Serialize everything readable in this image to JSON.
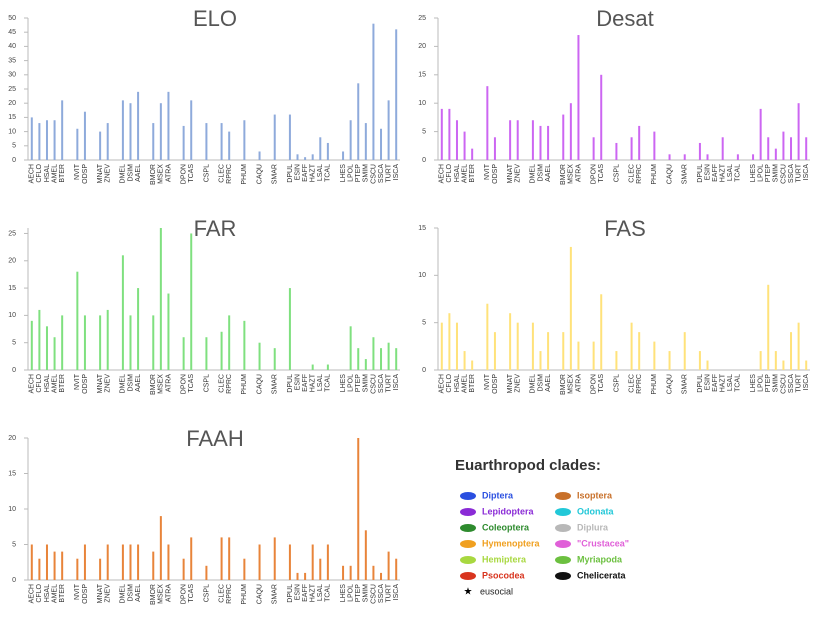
{
  "chart_data": [
    {
      "type": "bar",
      "title": "ELO",
      "color": "#8eaadb",
      "ylim": [
        0,
        50
      ],
      "yticks": [
        0,
        5,
        10,
        15,
        20,
        25,
        30,
        35,
        40,
        45,
        50
      ],
      "categories": [
        "AECH",
        "CFLO",
        "HSAL",
        "AMEL",
        "BTER",
        null,
        "NVIT",
        "ODSP",
        null,
        "MNAT",
        "ZNEV",
        null,
        "DMEL",
        "DSIM",
        "AAEL",
        null,
        "BMOR",
        "MSEX",
        "ATRA",
        null,
        "DPON",
        "TCAS",
        null,
        "CSPL",
        null,
        "CLEC",
        "RPRC",
        null,
        "PHUM",
        null,
        "CAQU",
        null,
        "SMAR",
        null,
        "DPUL",
        "ESIN",
        "EAFF",
        "HAZT",
        "LSAL",
        "TCAL",
        null,
        "LHES",
        "LPOL",
        "PTEP",
        "SMIM",
        "CSCU",
        "SSCA",
        "TURT",
        "ISCA"
      ],
      "values": [
        15,
        13,
        14,
        14,
        21,
        null,
        11,
        17,
        null,
        10,
        13,
        null,
        21,
        20,
        24,
        null,
        13,
        20,
        24,
        null,
        12,
        21,
        null,
        13,
        null,
        13,
        10,
        null,
        14,
        null,
        3,
        null,
        16,
        null,
        16,
        2,
        1,
        2,
        8,
        6,
        null,
        3,
        14,
        27,
        13,
        48,
        11,
        21,
        46
      ]
    },
    {
      "type": "bar",
      "title": "Desat",
      "color": "#cc66f2",
      "ylim": [
        0,
        25
      ],
      "yticks": [
        0,
        5,
        10,
        15,
        20,
        25
      ],
      "categories": [
        "AECH",
        "CFLO",
        "HSAL",
        "AMEL",
        "BTER",
        null,
        "NVIT",
        "ODSP",
        null,
        "MNAT",
        "ZNEV",
        null,
        "DMEL",
        "DSIM",
        "AAEL",
        null,
        "BMOR",
        "MSEX",
        "ATRA",
        null,
        "DPON",
        "TCAS",
        null,
        "CSPL",
        null,
        "CLEC",
        "RPRC",
        null,
        "PHUM",
        null,
        "CAQU",
        null,
        "SMAR",
        null,
        "DPUL",
        "ESIN",
        "EAFF",
        "HAZT",
        "LSAL",
        "TCAL",
        null,
        "LHES",
        "LPOL",
        "PTEP",
        "SMIM",
        "CSCU",
        "SSCA",
        "TURT",
        "ISCA"
      ],
      "values": [
        9,
        9,
        7,
        5,
        2,
        null,
        13,
        4,
        null,
        7,
        7,
        null,
        7,
        6,
        6,
        null,
        8,
        10,
        22,
        null,
        4,
        15,
        null,
        3,
        null,
        4,
        6,
        null,
        5,
        null,
        1,
        null,
        1,
        null,
        3,
        1,
        0,
        4,
        0,
        1,
        null,
        1,
        9,
        4,
        2,
        5,
        4,
        10,
        4
      ]
    },
    {
      "type": "bar",
      "title": "FAR",
      "color": "#7fe07f",
      "ylim": [
        0,
        26
      ],
      "yticks": [
        0,
        5,
        10,
        15,
        20,
        25
      ],
      "categories": [
        "AECH",
        "CFLO",
        "HSAL",
        "AMEL",
        "BTER",
        null,
        "NVIT",
        "ODSP",
        null,
        "MNAT",
        "ZNEV",
        null,
        "DMEL",
        "DSIM",
        "AAEL",
        null,
        "BMOR",
        "MSEX",
        "ATRA",
        null,
        "DPON",
        "TCAS",
        null,
        "CSPL",
        null,
        "CLEC",
        "RPRC",
        null,
        "PHUM",
        null,
        "CAQU",
        null,
        "SMAR",
        null,
        "DPUL",
        "ESIN",
        "EAFF",
        "HAZT",
        "LSAL",
        "TCAL",
        null,
        "LHES",
        "LPOL",
        "PTEP",
        "SMIM",
        "CSCU",
        "SSCA",
        "TURT",
        "ISCA"
      ],
      "values": [
        9,
        11,
        8,
        6,
        10,
        null,
        18,
        10,
        null,
        10,
        11,
        null,
        21,
        10,
        15,
        null,
        10,
        26,
        14,
        null,
        6,
        25,
        null,
        6,
        null,
        7,
        10,
        null,
        9,
        null,
        5,
        null,
        4,
        null,
        15,
        0,
        0,
        1,
        0,
        1,
        null,
        0,
        8,
        4,
        2,
        6,
        4,
        5,
        4
      ]
    },
    {
      "type": "bar",
      "title": "FAS",
      "color": "#ffe27a",
      "ylim": [
        0,
        15
      ],
      "yticks": [
        0,
        5,
        10,
        15
      ],
      "categories": [
        "AECH",
        "CFLO",
        "HSAL",
        "AMEL",
        "BTER",
        null,
        "NVIT",
        "ODSP",
        null,
        "MNAT",
        "ZNEV",
        null,
        "DMEL",
        "DSIM",
        "AAEL",
        null,
        "BMOR",
        "MSEX",
        "ATRA",
        null,
        "DPON",
        "TCAS",
        null,
        "CSPL",
        null,
        "CLEC",
        "RPRC",
        null,
        "PHUM",
        null,
        "CAQU",
        null,
        "SMAR",
        null,
        "DPUL",
        "ESIN",
        "EAFF",
        "HAZT",
        "LSAL",
        "TCAL",
        null,
        "LHES",
        "LPOL",
        "PTEP",
        "SMIM",
        "CSCU",
        "SSCA",
        "TURT",
        "ISCA"
      ],
      "values": [
        5,
        6,
        5,
        2,
        1,
        null,
        7,
        4,
        null,
        6,
        5,
        null,
        5,
        2,
        4,
        null,
        4,
        13,
        3,
        null,
        3,
        8,
        null,
        2,
        null,
        5,
        4,
        null,
        3,
        null,
        2,
        null,
        4,
        null,
        2,
        1,
        0,
        0,
        0,
        0,
        null,
        0,
        2,
        9,
        2,
        1,
        4,
        5,
        1
      ]
    },
    {
      "type": "bar",
      "title": "FAAH",
      "color": "#e8843a",
      "ylim": [
        0,
        20
      ],
      "yticks": [
        0,
        5,
        10,
        15,
        20
      ],
      "categories": [
        "AECH",
        "CFLO",
        "HSAL",
        "AMEL",
        "BTER",
        null,
        "NVIT",
        "ODSP",
        null,
        "MNAT",
        "ZNEV",
        null,
        "DMEL",
        "DSIM",
        "AAEL",
        null,
        "BMOR",
        "MSEX",
        "ATRA",
        null,
        "DPON",
        "TCAS",
        null,
        "CSPL",
        null,
        "CLEC",
        "RPRC",
        null,
        "PHUM",
        null,
        "CAQU",
        null,
        "SMAR",
        null,
        "DPUL",
        "ESIN",
        "EAFF",
        "HAZT",
        "LSAL",
        "TCAL",
        null,
        "LHES",
        "LPOL",
        "PTEP",
        "SMIM",
        "CSCU",
        "SSCA",
        "TURT",
        "ISCA"
      ],
      "values": [
        5,
        3,
        5,
        4,
        4,
        null,
        3,
        5,
        null,
        3,
        5,
        null,
        5,
        5,
        5,
        null,
        4,
        9,
        5,
        null,
        3,
        6,
        null,
        2,
        null,
        6,
        6,
        null,
        3,
        null,
        5,
        null,
        6,
        null,
        5,
        1,
        1,
        5,
        3,
        5,
        null,
        2,
        2,
        20,
        7,
        2,
        1,
        4,
        3
      ]
    }
  ],
  "legend": {
    "title": "Euarthropod clades:",
    "eusocial": "eusocial",
    "items": [
      {
        "name": "Diptera",
        "color": "#2a4fe0"
      },
      {
        "name": "Lepidoptera",
        "color": "#8a2bd6"
      },
      {
        "name": "Coleoptera",
        "color": "#2e8b2e"
      },
      {
        "name": "Hymenoptera",
        "color": "#f0a020"
      },
      {
        "name": "Hemiptera",
        "color": "#a8d840"
      },
      {
        "name": "Psocodea",
        "color": "#d8341e"
      },
      {
        "name": "Isoptera",
        "color": "#c8702a"
      },
      {
        "name": "Odonata",
        "color": "#22c8d8"
      },
      {
        "name": "Diplura",
        "color": "#b8b8b8"
      },
      {
        "name": "\"Crustacea\"",
        "color": "#e060d8"
      },
      {
        "name": "Myriapoda",
        "color": "#6cc040"
      },
      {
        "name": "Chelicerata",
        "color": "#111111"
      }
    ]
  }
}
